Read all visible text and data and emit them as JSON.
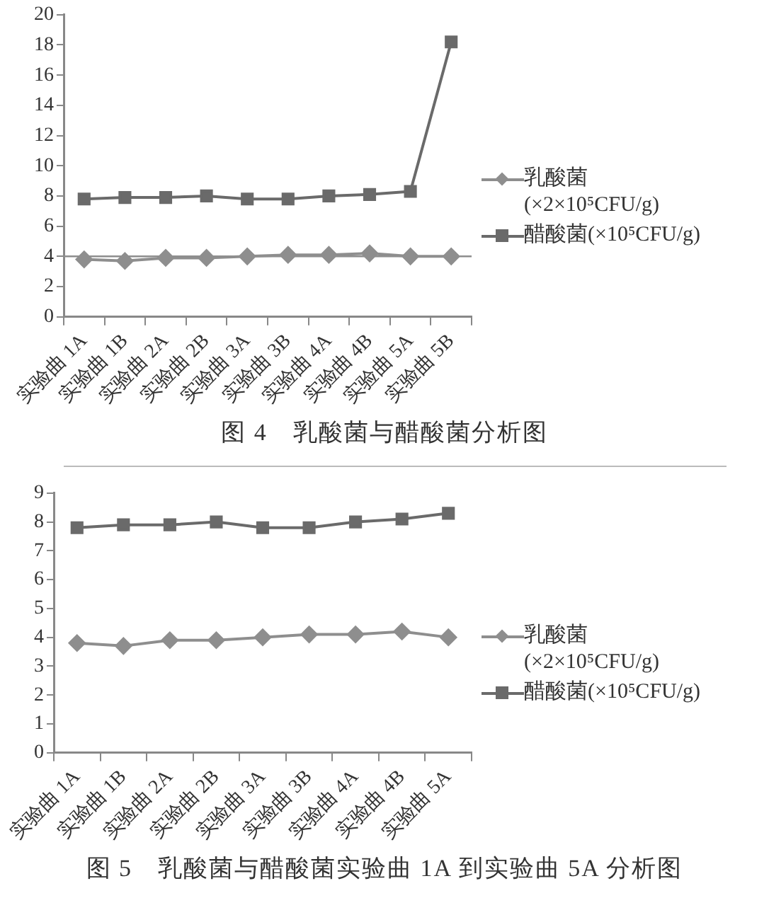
{
  "chart_data": [
    {
      "type": "line",
      "title": "图 4　乳酸菌与醋酸菌分析图",
      "categories": [
        "实验曲 1A",
        "实验曲 1B",
        "实验曲 2A",
        "实验曲 2B",
        "实验曲 3A",
        "实验曲 3B",
        "实验曲 4A",
        "实验曲 4B",
        "实验曲 5A",
        "实验曲 5B"
      ],
      "series": [
        {
          "name": "乳酸菌(×2×10⁵CFU/g)",
          "color": "#8e8e8e",
          "marker": "diamond",
          "values": [
            3.8,
            3.7,
            3.9,
            3.9,
            4.0,
            4.1,
            4.1,
            4.2,
            4.0,
            4.0
          ]
        },
        {
          "name": "醋酸菌(×10⁵CFU/g)",
          "color": "#6a6a6a",
          "marker": "square",
          "values": [
            7.8,
            7.9,
            7.9,
            8.0,
            7.8,
            7.8,
            8.0,
            8.1,
            8.3,
            18.2
          ]
        }
      ],
      "ylim": [
        0,
        20
      ],
      "yticks": [
        0,
        2,
        4,
        6,
        8,
        10,
        12,
        14,
        16,
        18,
        20
      ],
      "grid": false,
      "legend": "right",
      "ref_lines": [
        {
          "axis": "y",
          "value": 4,
          "color": "#8e8e8e"
        }
      ]
    },
    {
      "type": "line",
      "title": "图 5　乳酸菌与醋酸菌实验曲 1A 到实验曲 5A 分析图",
      "categories": [
        "实验曲 1A",
        "实验曲 1B",
        "实验曲 2A",
        "实验曲 2B",
        "实验曲 3A",
        "实验曲 3B",
        "实验曲 4A",
        "实验曲 4B",
        "实验曲 5A"
      ],
      "series": [
        {
          "name": "乳酸菌(×2×10⁵CFU/g)",
          "color": "#8e8e8e",
          "marker": "diamond",
          "values": [
            3.8,
            3.7,
            3.9,
            3.9,
            4.0,
            4.1,
            4.1,
            4.2,
            4.0
          ]
        },
        {
          "name": "醋酸菌(×10⁵CFU/g)",
          "color": "#6a6a6a",
          "marker": "square",
          "values": [
            7.8,
            7.9,
            7.9,
            8.0,
            7.8,
            7.8,
            8.0,
            8.1,
            8.3
          ]
        }
      ],
      "ylim": [
        0,
        9
      ],
      "yticks": [
        0,
        1,
        2,
        3,
        4,
        5,
        6,
        7,
        8,
        9
      ],
      "grid": false,
      "legend": "right"
    }
  ]
}
